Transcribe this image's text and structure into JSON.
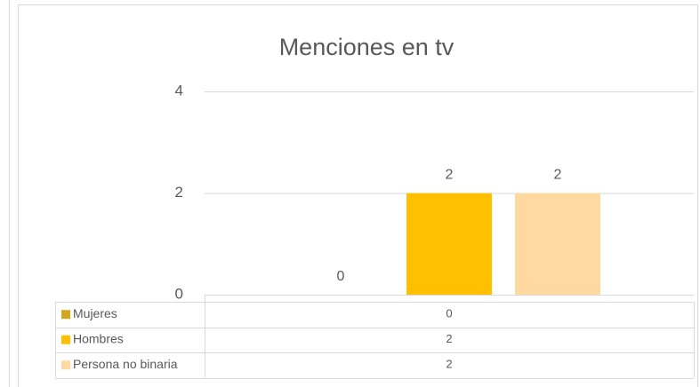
{
  "chart_data": {
    "type": "bar",
    "title": "Menciones en tv",
    "categories": [
      null
    ],
    "series": [
      {
        "name": "Mujeres",
        "color": "#d4a619",
        "values": [
          0
        ]
      },
      {
        "name": "Hombres",
        "color": "#ffc000",
        "values": [
          2
        ]
      },
      {
        "name": "Persona no binaria",
        "color": "#ffd9a0",
        "values": [
          2
        ]
      }
    ],
    "ylim": [
      0,
      4
    ],
    "yticks": [
      0,
      2,
      4
    ],
    "grid": true,
    "data_table": true
  }
}
